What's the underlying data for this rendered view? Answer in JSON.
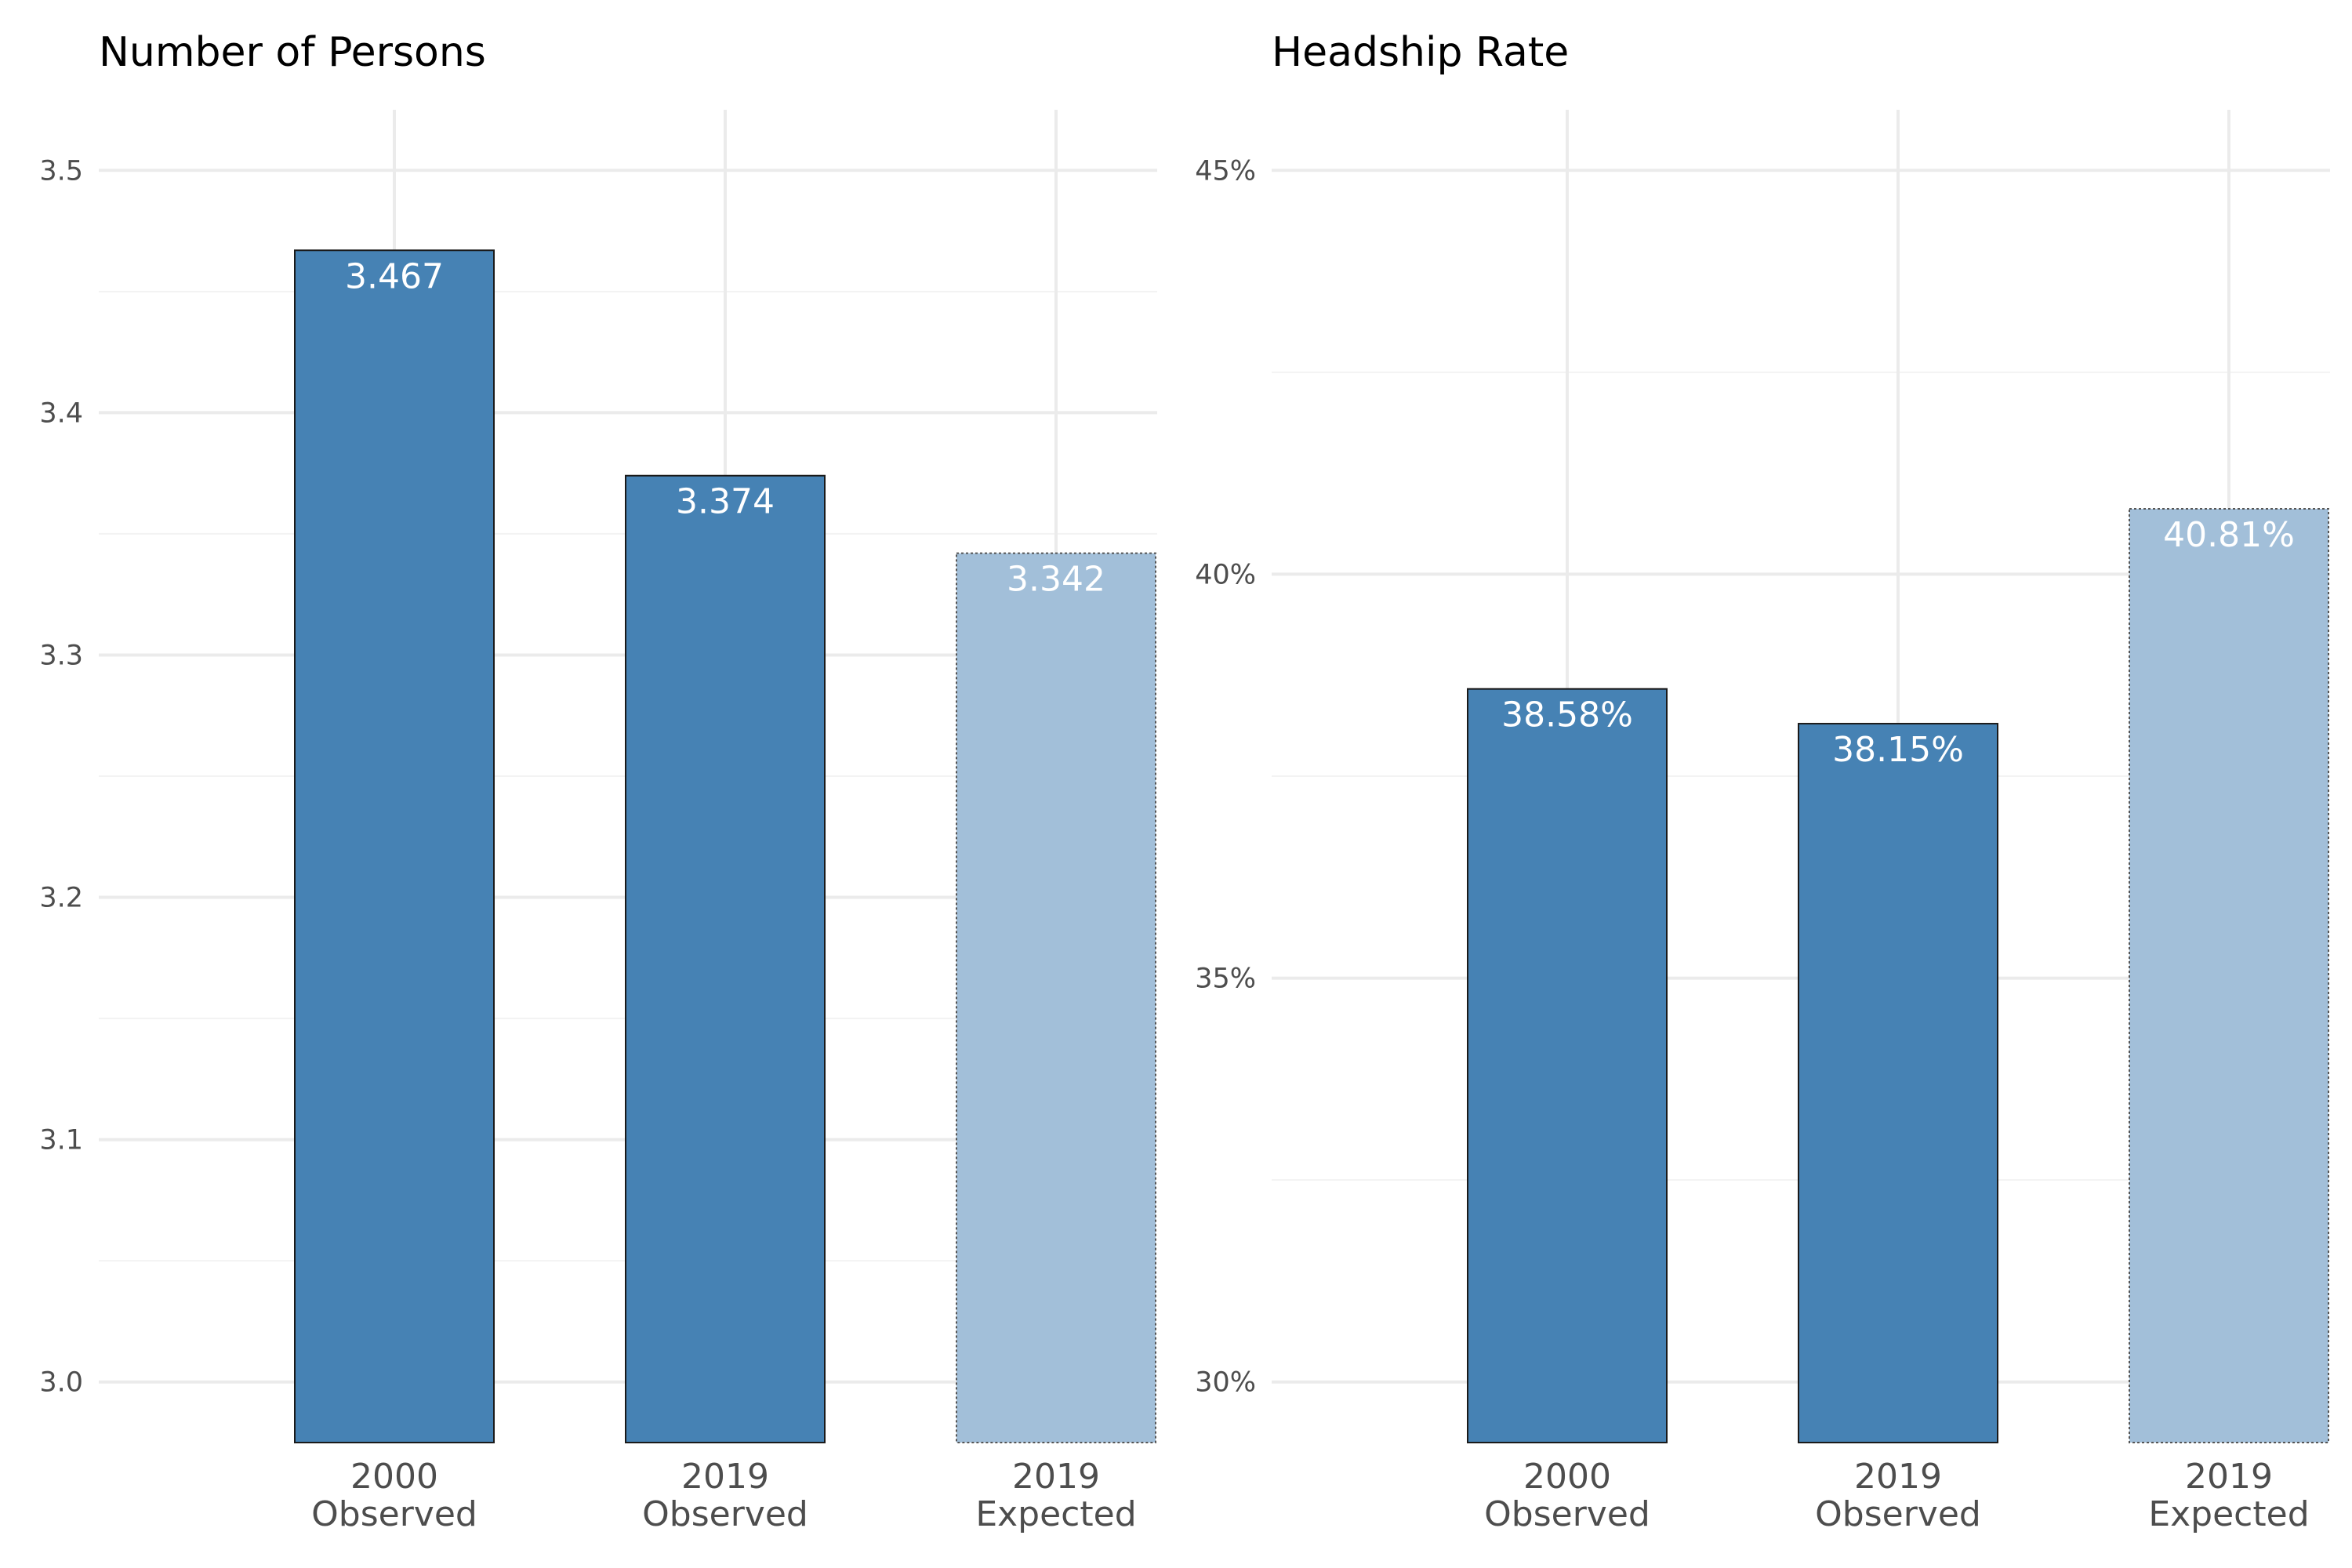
{
  "chart_data": [
    {
      "type": "bar",
      "title": "Number of Persons",
      "xlabel": "",
      "ylabel": "",
      "ylim": [
        2.975,
        3.525
      ],
      "yticks": [
        3.0,
        3.1,
        3.2,
        3.3,
        3.4,
        3.5
      ],
      "ytick_labels": [
        "3.0",
        "3.1",
        "3.2",
        "3.3",
        "3.4",
        "3.5"
      ],
      "categories": [
        {
          "year": "2000",
          "kind": "Observed"
        },
        {
          "year": "2019",
          "kind": "Observed"
        },
        {
          "year": "2019",
          "kind": "Expected"
        }
      ],
      "values": [
        3.467,
        3.374,
        3.342
      ],
      "value_labels": [
        "3.467",
        "3.374",
        "3.342"
      ],
      "expected_flags": [
        false,
        false,
        true
      ],
      "grid": true
    },
    {
      "type": "bar",
      "title": "Headship Rate",
      "xlabel": "",
      "ylabel": "",
      "ylim": [
        29.25,
        45.75
      ],
      "yticks": [
        30,
        35,
        40,
        45
      ],
      "ytick_labels": [
        "30%",
        "35%",
        "40%",
        "45%"
      ],
      "categories": [
        {
          "year": "2000",
          "kind": "Observed"
        },
        {
          "year": "2019",
          "kind": "Observed"
        },
        {
          "year": "2019",
          "kind": "Expected"
        }
      ],
      "values": [
        38.58,
        38.15,
        40.81
      ],
      "value_labels": [
        "38.58%",
        "38.15%",
        "40.81%"
      ],
      "expected_flags": [
        false,
        false,
        true
      ],
      "grid": true
    }
  ],
  "colors": {
    "observed_fill": "#4682b4",
    "expected_fill": "#a2bfd9",
    "observed_border": "#1a1a1a",
    "expected_border": "#555555",
    "grid_major": "#ebebeb",
    "grid_minor": "#f3f3f3",
    "background": "#ffffff"
  }
}
